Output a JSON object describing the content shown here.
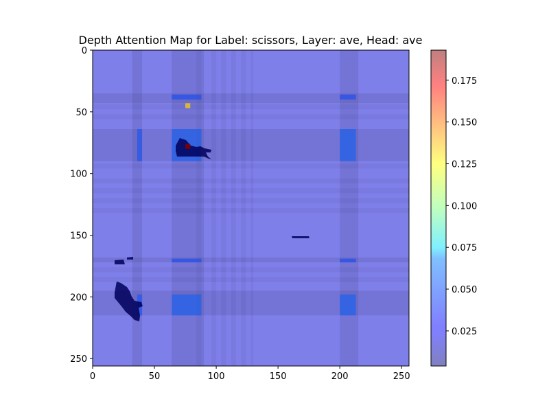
{
  "chart_data": {
    "type": "heatmap",
    "title": "Depth Attention Map for Label: scissors, Layer: ave, Head: ave",
    "xlabel": "",
    "ylabel": "",
    "xlim": [
      0,
      256
    ],
    "ylim": [
      256,
      0
    ],
    "x_ticks": [
      0,
      50,
      100,
      150,
      200,
      250
    ],
    "y_ticks": [
      0,
      50,
      100,
      150,
      200,
      250
    ],
    "colorbar": {
      "range": [
        0.004,
        0.193
      ],
      "ticks": [
        0.025,
        0.05,
        0.075,
        0.1,
        0.125,
        0.15,
        0.175
      ],
      "tick_labels": [
        "0.025",
        "0.050",
        "0.075",
        "0.100",
        "0.125",
        "0.150",
        "0.175"
      ],
      "colormap": "jet",
      "alpha": 0.5
    },
    "background_level": 0.02,
    "column_bands": [
      {
        "x": [
          32,
          40
        ],
        "value": 0.012
      },
      {
        "x": [
          64,
          90
        ],
        "value": 0.01
      },
      {
        "x": [
          200,
          215
        ],
        "value": 0.012
      }
    ],
    "row_bands": [
      {
        "y": [
          35,
          43
        ],
        "value": 0.012
      },
      {
        "y": [
          64,
          90
        ],
        "value": 0.01
      },
      {
        "y": [
          168,
          172
        ],
        "value": 0.012
      },
      {
        "y": [
          195,
          215
        ],
        "value": 0.01
      }
    ],
    "hot_rects": [
      {
        "x": [
          36,
          40
        ],
        "y": [
          64,
          90
        ],
        "value": 0.042
      },
      {
        "x": [
          64,
          88
        ],
        "y": [
          64,
          90
        ],
        "value": 0.045
      },
      {
        "x": [
          200,
          213
        ],
        "y": [
          64,
          90
        ],
        "value": 0.045
      },
      {
        "x": [
          36,
          40
        ],
        "y": [
          198,
          215
        ],
        "value": 0.042
      },
      {
        "x": [
          64,
          88
        ],
        "y": [
          198,
          215
        ],
        "value": 0.045
      },
      {
        "x": [
          200,
          213
        ],
        "y": [
          198,
          215
        ],
        "value": 0.045
      },
      {
        "x": [
          64,
          88
        ],
        "y": [
          36,
          40
        ],
        "value": 0.04
      },
      {
        "x": [
          200,
          213
        ],
        "y": [
          36,
          40
        ],
        "value": 0.04
      },
      {
        "x": [
          64,
          88
        ],
        "y": [
          169,
          172
        ],
        "value": 0.04
      },
      {
        "x": [
          200,
          213
        ],
        "y": [
          169,
          172
        ],
        "value": 0.04
      }
    ],
    "hotspots": [
      {
        "x": 77,
        "y": 45,
        "value": 0.13
      },
      {
        "x": 77,
        "y": 78,
        "value": 0.193
      }
    ]
  },
  "colors": {
    "background": "#ffffff",
    "axis": "#000000"
  }
}
